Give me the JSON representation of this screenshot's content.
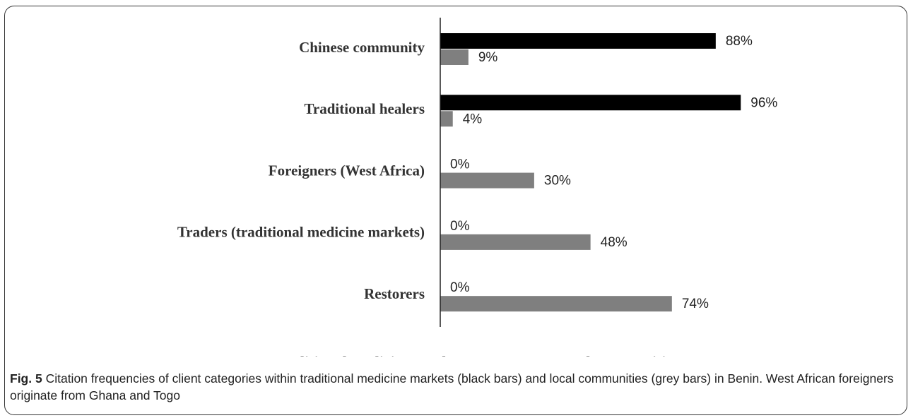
{
  "chart_data": {
    "type": "bar",
    "orientation": "horizontal",
    "categories": [
      "Chinese community",
      "Traditional healers",
      "Foreigners (West Africa)",
      "Traders (traditional medicine markets)",
      "Restorers"
    ],
    "series": [
      {
        "name": "Traditional medicine markets",
        "color": "#000000",
        "values": [
          88,
          96,
          0,
          0,
          0
        ],
        "value_labels": [
          "88%",
          "96%",
          "0%",
          "0%",
          "0%"
        ]
      },
      {
        "name": "Local communities",
        "color": "#7f7f7f",
        "values": [
          9,
          4,
          30,
          48,
          74
        ],
        "value_labels": [
          "9%",
          "4%",
          "30%",
          "48%",
          "74%"
        ]
      }
    ],
    "xlim": [
      0,
      100
    ],
    "legend": "bottom"
  },
  "caption": {
    "label": "Fig. 5",
    "text": "Citation frequencies of client categories within traditional medicine markets (black bars) and local communities (grey bars) in Benin. West African foreigners originate from Ghana and Togo"
  }
}
